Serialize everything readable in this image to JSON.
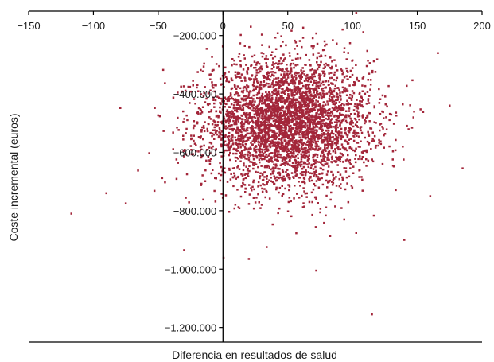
{
  "chart_data": {
    "type": "scatter",
    "title": "",
    "xlabel": "Diferencia en resultados de salud",
    "ylabel": "Coste incremental (euros)",
    "xlim": [
      -150,
      200
    ],
    "ylim": [
      -1250000,
      -100000
    ],
    "x_ticks": [
      -150,
      -100,
      -50,
      0,
      50,
      100,
      150,
      200
    ],
    "x_tick_labels": [
      "−150",
      "−100",
      "−50",
      "0",
      "50",
      "100",
      "150",
      "200"
    ],
    "y_ticks": [
      -200000,
      -400000,
      -600000,
      -800000,
      -1000000,
      -1200000
    ],
    "y_tick_labels": [
      "−200.000",
      "−400.000",
      "−600.000",
      "−800.000",
      "−1.000.000",
      "−1.200.000"
    ],
    "grid": false,
    "legend": "none",
    "point_color": "#A3263A",
    "cloud": {
      "x_mean": 50,
      "x_sd": 32,
      "y_mean": -500000,
      "y_sd": 110000,
      "n_points": 4000
    },
    "outliers": [
      {
        "x": -117,
        "y": -810000
      },
      {
        "x": 115,
        "y": -1155000
      },
      {
        "x": -30,
        "y": -935000
      },
      {
        "x": 185,
        "y": -655000
      },
      {
        "x": 175,
        "y": -440000
      },
      {
        "x": 160,
        "y": -750000
      },
      {
        "x": 100,
        "y": -285000
      },
      {
        "x": -75,
        "y": -775000
      },
      {
        "x": -90,
        "y": -740000
      },
      {
        "x": 140,
        "y": -900000
      },
      {
        "x": 20,
        "y": -965000
      },
      {
        "x": 72,
        "y": -1005000
      }
    ]
  }
}
